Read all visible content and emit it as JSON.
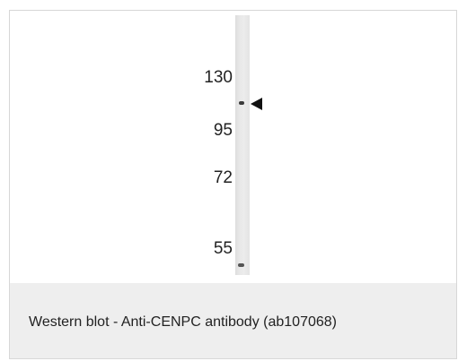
{
  "figure": {
    "markers": [
      {
        "label": "130"
      },
      {
        "label": "95"
      },
      {
        "label": "72"
      },
      {
        "label": "55"
      }
    ],
    "band_arrow_icon": "left-pointing-triangle",
    "caption": "Western blot - Anti-CENPC antibody (ab107068)"
  }
}
